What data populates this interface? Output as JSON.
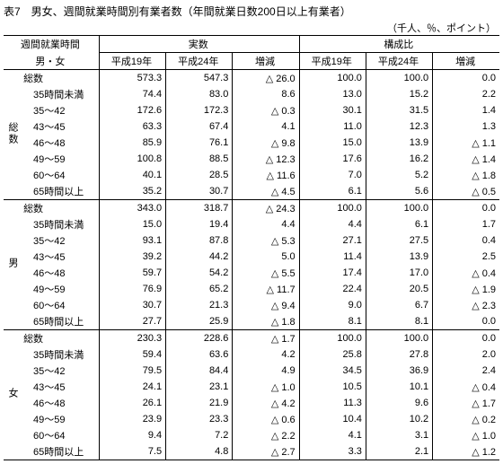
{
  "title": "表7　男女、週間就業時間別有業者数（年間就業日数200日以上有業者）",
  "unit": "（千人、％、ポイント）",
  "headers": {
    "rowhead1": "週間就業時間",
    "rowhead2": "男・女",
    "g1": "実数",
    "g2": "構成比",
    "c1": "平成19年",
    "c2": "平成24年",
    "c3": "増減"
  },
  "groups": [
    {
      "label": "総数",
      "rows": [
        {
          "cat": "総数",
          "v": [
            "573.3",
            "547.3",
            "△ 26.0",
            "100.0",
            "100.0",
            "0.0"
          ]
        },
        {
          "cat": "35時間未満",
          "v": [
            "74.4",
            "83.0",
            "8.6",
            "13.0",
            "15.2",
            "2.2"
          ]
        },
        {
          "cat": "35～42",
          "v": [
            "172.6",
            "172.3",
            "△ 0.3",
            "30.1",
            "31.5",
            "1.4"
          ]
        },
        {
          "cat": "43～45",
          "v": [
            "63.3",
            "67.4",
            "4.1",
            "11.0",
            "12.3",
            "1.3"
          ]
        },
        {
          "cat": "46～48",
          "v": [
            "85.9",
            "76.1",
            "△ 9.8",
            "15.0",
            "13.9",
            "△ 1.1"
          ]
        },
        {
          "cat": "49～59",
          "v": [
            "100.8",
            "88.5",
            "△ 12.3",
            "17.6",
            "16.2",
            "△ 1.4"
          ]
        },
        {
          "cat": "60～64",
          "v": [
            "40.1",
            "28.5",
            "△ 11.6",
            "7.0",
            "5.2",
            "△ 1.8"
          ]
        },
        {
          "cat": "65時間以上",
          "v": [
            "35.2",
            "30.7",
            "△ 4.5",
            "6.1",
            "5.6",
            "△ 0.5"
          ]
        }
      ]
    },
    {
      "label": "男",
      "rows": [
        {
          "cat": "総数",
          "v": [
            "343.0",
            "318.7",
            "△ 24.3",
            "100.0",
            "100.0",
            "0.0"
          ]
        },
        {
          "cat": "35時間未満",
          "v": [
            "15.0",
            "19.4",
            "4.4",
            "4.4",
            "6.1",
            "1.7"
          ]
        },
        {
          "cat": "35～42",
          "v": [
            "93.1",
            "87.8",
            "△ 5.3",
            "27.1",
            "27.5",
            "0.4"
          ]
        },
        {
          "cat": "43～45",
          "v": [
            "39.2",
            "44.2",
            "5.0",
            "11.4",
            "13.9",
            "2.5"
          ]
        },
        {
          "cat": "46～48",
          "v": [
            "59.7",
            "54.2",
            "△ 5.5",
            "17.4",
            "17.0",
            "△ 0.4"
          ]
        },
        {
          "cat": "49～59",
          "v": [
            "76.9",
            "65.2",
            "△ 11.7",
            "22.4",
            "20.5",
            "△ 1.9"
          ]
        },
        {
          "cat": "60～64",
          "v": [
            "30.7",
            "21.3",
            "△ 9.4",
            "9.0",
            "6.7",
            "△ 2.3"
          ]
        },
        {
          "cat": "65時間以上",
          "v": [
            "27.7",
            "25.9",
            "△ 1.8",
            "8.1",
            "8.1",
            "0.0"
          ]
        }
      ]
    },
    {
      "label": "女",
      "rows": [
        {
          "cat": "総数",
          "v": [
            "230.3",
            "228.6",
            "△ 1.7",
            "100.0",
            "100.0",
            "0.0"
          ]
        },
        {
          "cat": "35時間未満",
          "v": [
            "59.4",
            "63.6",
            "4.2",
            "25.8",
            "27.8",
            "2.0"
          ]
        },
        {
          "cat": "35～42",
          "v": [
            "79.5",
            "84.4",
            "4.9",
            "34.5",
            "36.9",
            "2.4"
          ]
        },
        {
          "cat": "43～45",
          "v": [
            "24.1",
            "23.1",
            "△ 1.0",
            "10.5",
            "10.1",
            "△ 0.4"
          ]
        },
        {
          "cat": "46～48",
          "v": [
            "26.1",
            "21.9",
            "△ 4.2",
            "11.3",
            "9.6",
            "△ 1.7"
          ]
        },
        {
          "cat": "49～59",
          "v": [
            "23.9",
            "23.3",
            "△ 0.6",
            "10.4",
            "10.2",
            "△ 0.2"
          ]
        },
        {
          "cat": "60～64",
          "v": [
            "9.4",
            "7.2",
            "△ 2.2",
            "4.1",
            "3.1",
            "△ 1.0"
          ]
        },
        {
          "cat": "65時間以上",
          "v": [
            "7.5",
            "4.8",
            "△ 2.7",
            "3.3",
            "2.1",
            "△ 1.2"
          ]
        }
      ]
    }
  ]
}
